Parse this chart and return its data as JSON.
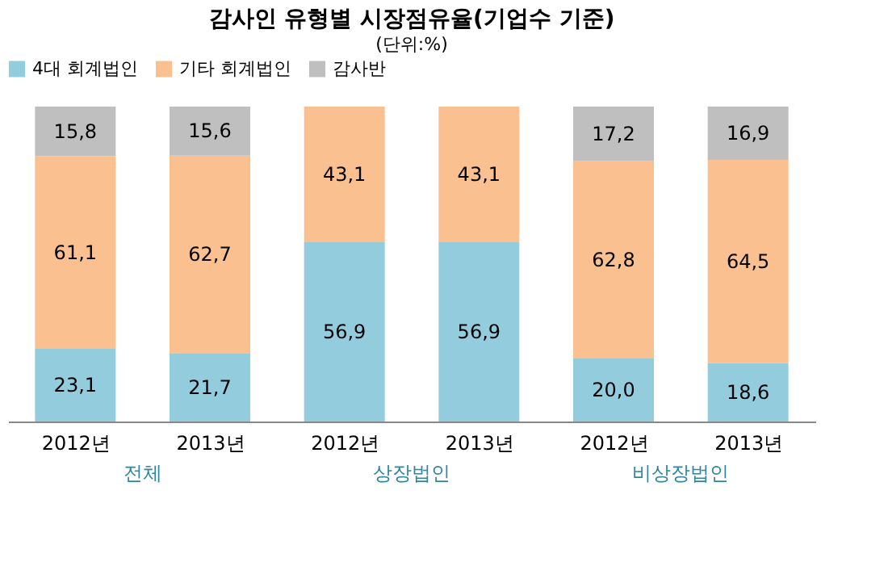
{
  "chart_data": {
    "type": "bar",
    "title": "감사인 유형별 시장점유율(기업수 기준)",
    "subtitle": "(단위:%)",
    "categories": [
      "2012년",
      "2013년",
      "2012년",
      "2013년",
      "2012년",
      "2013년"
    ],
    "stacked": true,
    "legend": "top",
    "grid": false,
    "annotations": [
      "전체",
      "상장법인",
      "비상장법인"
    ],
    "series": [
      {
        "name": "4대 회계법인",
        "color": "#93cddd",
        "values": [
          23.1,
          21.7,
          56.9,
          56.9,
          20.0,
          18.6
        ],
        "value_labels": [
          "23,1",
          "21,7",
          "56,9",
          "56,9",
          "20,0",
          "18,6"
        ]
      },
      {
        "name": "기타 회계법인",
        "color": "#fac090",
        "values": [
          61.1,
          62.7,
          43.1,
          43.1,
          62.8,
          64.5
        ],
        "value_labels": [
          "61,1",
          "62,7",
          "43,1",
          "43,1",
          "62,8",
          "64,5"
        ]
      },
      {
        "name": "감사반",
        "color": "#bfbfbf",
        "values": [
          15.8,
          15.6,
          null,
          null,
          17.2,
          16.9
        ],
        "value_labels": [
          "15,8",
          "15,6",
          null,
          null,
          "17,2",
          "16,9"
        ]
      }
    ]
  }
}
